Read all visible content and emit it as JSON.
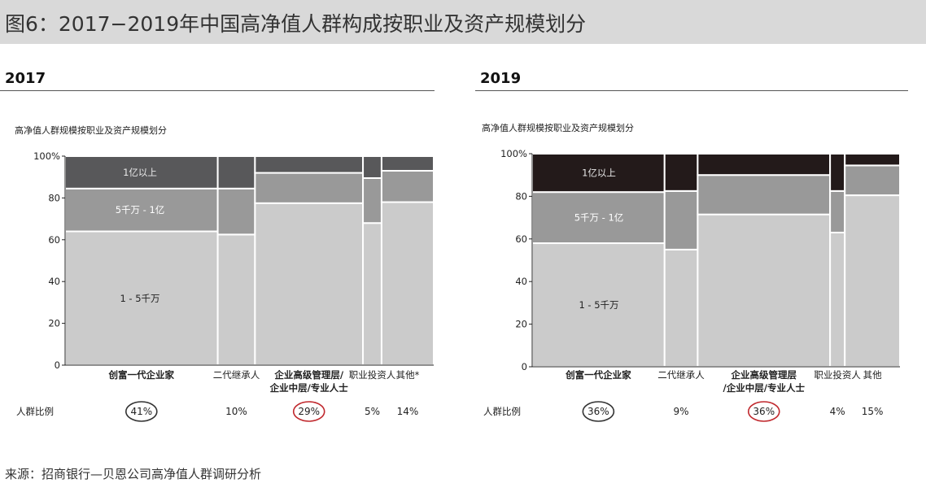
{
  "title": "图6：2017−2019年中国高净值人群构成按职业及资产规模划分",
  "source": "来源：招商银行—贝恩公司高净值人群调研分析",
  "colors": {
    "band_low": "#cbcbcb",
    "band_mid": "#999999",
    "band_top_2017": "#58585a",
    "band_top_2019": "#231a1a",
    "circle_dark": "#333333",
    "circle_red": "#c0282d"
  },
  "chart_data": [
    {
      "type": "marimekko",
      "year": "2017",
      "subtitle": "高净值人群规模按职业及资产规模划分",
      "ylim": [
        0,
        100
      ],
      "yticks": [
        "0",
        "20",
        "40",
        "60",
        "80",
        "100%"
      ],
      "band_labels": [
        "1 - 5千万",
        "5千万 - 1亿",
        "1亿以上"
      ],
      "share_label": "人群比例",
      "categories": [
        {
          "name": [
            "创富一代企业家"
          ],
          "bold": true,
          "share": 41,
          "share_text": "41%",
          "circle": "dark",
          "values": [
            64,
            20.5,
            15.5
          ]
        },
        {
          "name": [
            "二代继承人"
          ],
          "bold": false,
          "share": 10,
          "share_text": "10%",
          "circle": "",
          "values": [
            62.5,
            22,
            15.5
          ]
        },
        {
          "name": [
            "企业高级管理层/",
            "企业中层/专业人士"
          ],
          "bold": true,
          "share": 29,
          "share_text": "29%",
          "circle": "red",
          "values": [
            77.5,
            14.5,
            8
          ]
        },
        {
          "name": [
            "职业投资人"
          ],
          "bold": false,
          "share": 5,
          "share_text": "5%",
          "circle": "",
          "values": [
            68,
            21.5,
            10.5
          ]
        },
        {
          "name": [
            "其他*"
          ],
          "bold": false,
          "share": 14,
          "share_text": "14%",
          "circle": "",
          "values": [
            78,
            15,
            7
          ]
        }
      ]
    },
    {
      "type": "marimekko",
      "year": "2019",
      "subtitle": "高净值人群规模按职业及资产规模划分",
      "ylim": [
        0,
        100
      ],
      "yticks": [
        "0",
        "20",
        "40",
        "60",
        "80",
        "100%"
      ],
      "band_labels": [
        "1 - 5千万",
        "5千万 - 1亿",
        "1亿以上"
      ],
      "share_label": "人群比例",
      "categories": [
        {
          "name": [
            "创富一代企业家"
          ],
          "bold": true,
          "share": 36,
          "share_text": "36%",
          "circle": "dark",
          "values": [
            58,
            24,
            18
          ]
        },
        {
          "name": [
            "二代继承人"
          ],
          "bold": false,
          "share": 9,
          "share_text": "9%",
          "circle": "",
          "values": [
            55,
            27.5,
            17.5
          ]
        },
        {
          "name": [
            "企业高级管理层",
            "/企业中层/专业人士"
          ],
          "bold": true,
          "share": 36,
          "share_text": "36%",
          "circle": "red",
          "values": [
            71.5,
            18.5,
            10
          ]
        },
        {
          "name": [
            "职业投资人"
          ],
          "bold": false,
          "share": 4,
          "share_text": "4%",
          "circle": "",
          "values": [
            63,
            19.5,
            17.5
          ]
        },
        {
          "name": [
            "其他"
          ],
          "bold": false,
          "share": 15,
          "share_text": "15%",
          "circle": "",
          "values": [
            80.5,
            14,
            5.5
          ]
        }
      ]
    }
  ]
}
